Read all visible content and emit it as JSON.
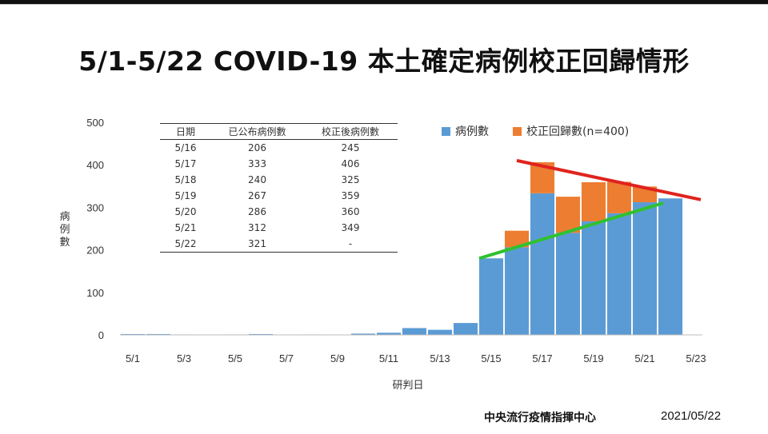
{
  "title": "5/1-5/22 COVID-19 本土確定病例校正回歸情形",
  "legend": {
    "cases": "病例數",
    "corrected": "校正回歸數(n=400)"
  },
  "colors": {
    "cases": "#5b9bd5",
    "corrected": "#ed7d31",
    "trend_red": "#e0231e",
    "trend_green": "#2fc12f"
  },
  "table": {
    "headers": [
      "日期",
      "已公布病例數",
      "校正後病例數"
    ],
    "rows": [
      [
        "5/16",
        "206",
        "245"
      ],
      [
        "5/17",
        "333",
        "406"
      ],
      [
        "5/18",
        "240",
        "325"
      ],
      [
        "5/19",
        "267",
        "359"
      ],
      [
        "5/20",
        "286",
        "360"
      ],
      [
        "5/21",
        "312",
        "349"
      ],
      [
        "5/22",
        "321",
        "-"
      ]
    ]
  },
  "footer": {
    "source": "中央流行疫情指揮中心",
    "date": "2021/05/22"
  },
  "chart_data": {
    "type": "bar",
    "stacked": true,
    "ylabel": "病例數",
    "xlabel": "研判日",
    "ylim": [
      0,
      500
    ],
    "yticks": [
      0,
      100,
      200,
      300,
      400,
      500
    ],
    "categories": [
      "5/1",
      "5/2",
      "5/3",
      "5/4",
      "5/5",
      "5/6",
      "5/7",
      "5/8",
      "5/9",
      "5/10",
      "5/11",
      "5/12",
      "5/13",
      "5/14",
      "5/15",
      "5/16",
      "5/17",
      "5/18",
      "5/19",
      "5/20",
      "5/21",
      "5/22"
    ],
    "xtick_labels": [
      "5/1",
      "5/3",
      "5/5",
      "5/7",
      "5/9",
      "5/11",
      "5/13",
      "5/15",
      "5/17",
      "5/19",
      "5/21",
      "5/23"
    ],
    "series": [
      {
        "name": "病例數",
        "values": [
          2,
          2,
          1,
          0,
          1,
          2,
          0,
          1,
          0,
          3,
          5,
          16,
          12,
          28,
          180,
          206,
          333,
          240,
          267,
          286,
          312,
          321
        ]
      },
      {
        "name": "校正回歸數(n=400)",
        "values": [
          0,
          0,
          0,
          0,
          0,
          0,
          0,
          0,
          0,
          0,
          0,
          0,
          0,
          0,
          0,
          39,
          73,
          85,
          92,
          74,
          37,
          0
        ]
      }
    ],
    "trend_lines": [
      {
        "color": "red",
        "from": [
          "5/16",
          410
        ],
        "to": [
          "5/23",
          318
        ]
      },
      {
        "color": "green",
        "from": [
          "5/15",
          180
        ],
        "to": [
          "5/22",
          310
        ]
      }
    ]
  }
}
